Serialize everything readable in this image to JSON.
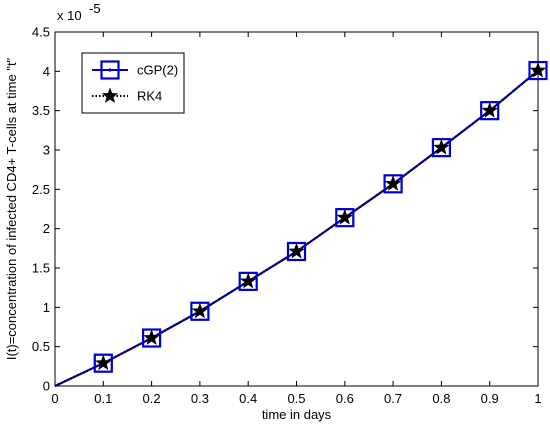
{
  "chart_data": {
    "type": "line",
    "x": [
      0,
      0.1,
      0.2,
      0.3,
      0.4,
      0.5,
      0.6,
      0.7,
      0.8,
      0.9,
      1.0
    ],
    "series": [
      {
        "name": "cGP(2)",
        "color": "#0000cc",
        "marker": "square",
        "line_style": "solid",
        "values": [
          0,
          0.29,
          0.61,
          0.95,
          1.33,
          1.71,
          2.14,
          2.57,
          3.03,
          3.5,
          4.01
        ]
      },
      {
        "name": "RK4",
        "color": "#000000",
        "marker": "pentagram",
        "line_style": "dotted",
        "values": [
          0,
          0.29,
          0.61,
          0.95,
          1.33,
          1.71,
          2.14,
          2.57,
          3.03,
          3.5,
          4.01
        ]
      }
    ],
    "xlabel": "time in days",
    "ylabel": "I(t)=concentration of infected CD4+ T-cells at time \"t\"",
    "y_multiplier_base": "x 10",
    "y_multiplier_exponent": "-5",
    "xlim": [
      0,
      1
    ],
    "ylim": [
      0,
      4.5
    ],
    "xticks": [
      "0",
      "0.1",
      "0.2",
      "0.3",
      "0.4",
      "0.5",
      "0.6",
      "0.7",
      "0.8",
      "0.9",
      "1"
    ],
    "yticks": [
      "0",
      "0.5",
      "1",
      "1.5",
      "2",
      "2.5",
      "3",
      "3.5",
      "4",
      "4.5"
    ],
    "grid": false,
    "legend_position": "top-left"
  }
}
